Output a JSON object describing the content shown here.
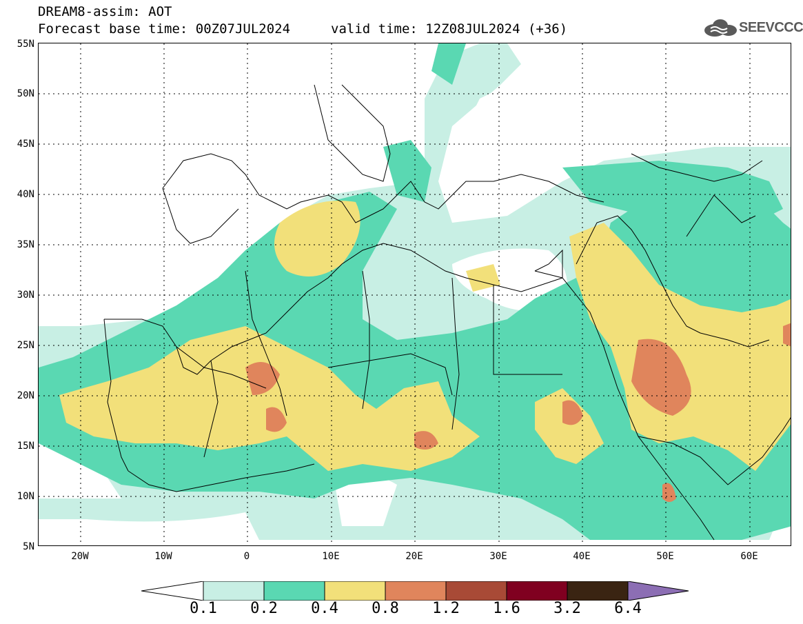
{
  "header": {
    "line1": "DREAM8-assim: AOT",
    "line2": "Forecast base time: 00Z07JUL2024",
    "valid": "valid time: 12Z08JUL2024 (+36)",
    "logo_text": "SEEVCCC"
  },
  "map": {
    "lat_labels": [
      "55N",
      "50N",
      "45N",
      "40N",
      "35N",
      "30N",
      "25N",
      "20N",
      "15N",
      "10N",
      "5N"
    ],
    "lon_labels": [
      "20W",
      "10W",
      "0",
      "10E",
      "20E",
      "30E",
      "40E",
      "50E",
      "60E"
    ],
    "lat_range": [
      5,
      55
    ],
    "lon_range": [
      -25,
      65
    ],
    "grid": "dotted"
  },
  "colorbar": {
    "levels": [
      "0.1",
      "0.2",
      "0.4",
      "0.8",
      "1.2",
      "1.6",
      "3.2",
      "6.4"
    ],
    "colors": [
      "#ffffff",
      "#c8efe4",
      "#5ad8b2",
      "#f2e07a",
      "#e0855c",
      "#a84a36",
      "#800020",
      "#3a2412",
      "#8c6eb4"
    ]
  },
  "fields": {
    "colors": {
      "c1": "#c8efe4",
      "c2": "#5ad8b2",
      "c3": "#f2e07a",
      "c4": "#e0855c"
    }
  }
}
